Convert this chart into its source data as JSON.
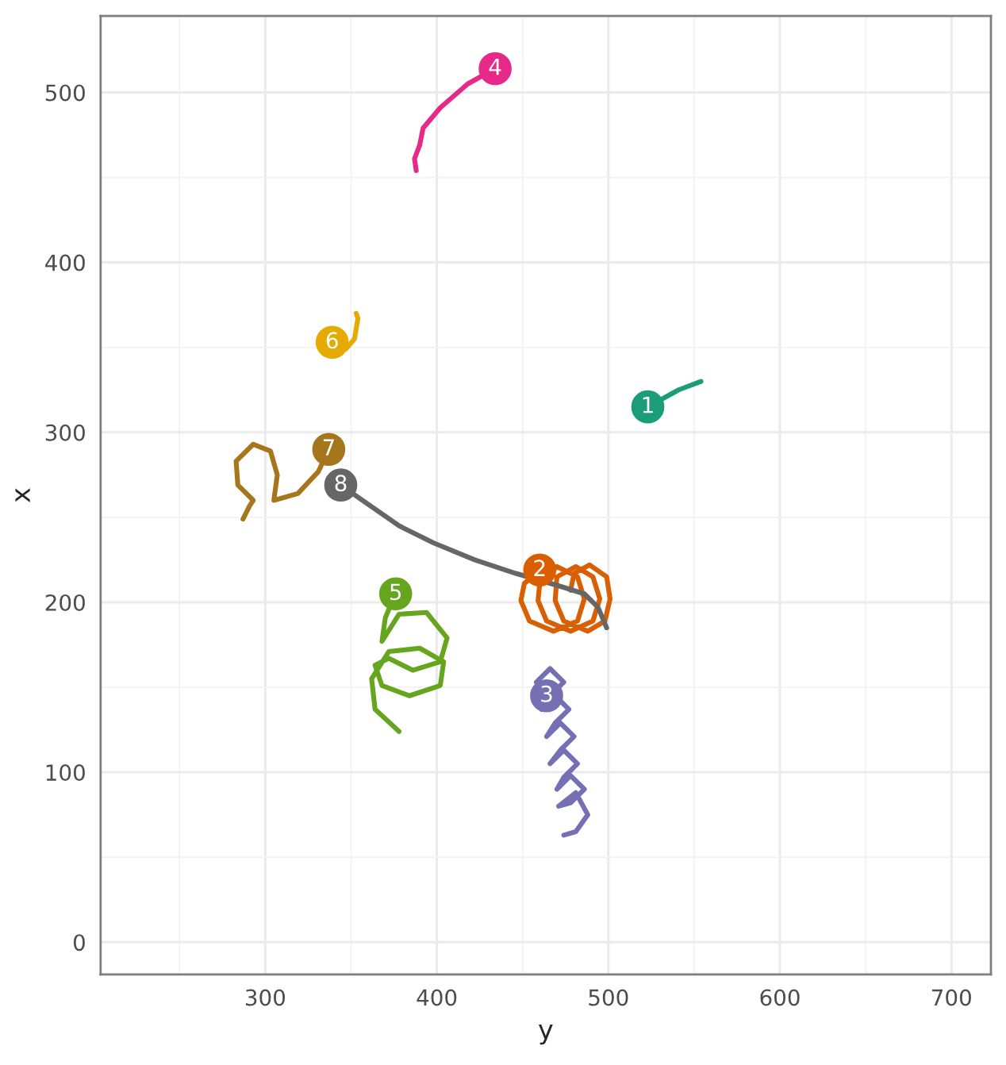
{
  "chart_data": {
    "type": "line",
    "xlabel": "y",
    "ylabel": "x",
    "xlim": [
      204,
      723
    ],
    "ylim": [
      -19,
      545
    ],
    "xticks": [
      {
        "value": 250,
        "label": null
      },
      300,
      {
        "value": 350,
        "label": null
      },
      400,
      {
        "value": 450,
        "label": null
      },
      500,
      {
        "value": 550,
        "label": null
      },
      600,
      {
        "value": 650,
        "label": null
      },
      700
    ],
    "yticks": [
      0,
      {
        "value": 50,
        "label": null
      },
      100,
      {
        "value": 150,
        "label": null
      },
      200,
      {
        "value": 250,
        "label": null
      },
      300,
      {
        "value": 350,
        "label": null
      },
      400,
      {
        "value": 450,
        "label": null
      },
      500
    ],
    "grid": true,
    "legend": false,
    "marker": "none",
    "line_style": "solid",
    "series": [
      {
        "name": "1",
        "color": "#1b9e77",
        "x": [
          523,
          541,
          554
        ],
        "values": [
          315,
          325,
          330
        ]
      },
      {
        "name": "2",
        "color": "#d95f02",
        "x": [
          460,
          451,
          449,
          454,
          468,
          482,
          486,
          482,
          470,
          460,
          459,
          464,
          478,
          491,
          495,
          491,
          481,
          470,
          469,
          474,
          488,
          498,
          501,
          499,
          489,
          480,
          478
        ],
        "values": [
          219,
          211,
          201,
          189,
          183,
          189,
          202,
          215,
          221,
          211,
          201,
          189,
          183,
          189,
          202,
          215,
          221,
          215,
          201,
          189,
          183,
          189,
          202,
          215,
          222,
          217,
          207
        ]
      },
      {
        "name": "3",
        "color": "#7570b3",
        "x": [
          464,
          458,
          466,
          474,
          466,
          461,
          469,
          477,
          469,
          464,
          472,
          480,
          472,
          466,
          474,
          482,
          474,
          470,
          478,
          486,
          478,
          471,
          481,
          488,
          481,
          474
        ],
        "values": [
          145,
          153,
          161,
          153,
          145,
          137,
          145,
          137,
          129,
          121,
          129,
          121,
          113,
          105,
          113,
          105,
          97,
          90,
          98,
          90,
          82,
          80,
          88,
          75,
          65,
          63
        ]
      },
      {
        "name": "4",
        "color": "#e7298a",
        "x": [
          434,
          418,
          402,
          392,
          390,
          387,
          388
        ],
        "values": [
          514,
          505,
          491,
          479,
          469,
          461,
          454
        ]
      },
      {
        "name": "5",
        "color": "#66a61e",
        "x": [
          376,
          370,
          368,
          378,
          394,
          406,
          402,
          386,
          372,
          364,
          368,
          384,
          402,
          404,
          390,
          372,
          362,
          364,
          378
        ],
        "values": [
          205,
          191,
          177,
          193,
          194,
          179,
          165,
          160,
          167,
          163,
          151,
          145,
          151,
          165,
          173,
          171,
          155,
          137,
          124
        ]
      },
      {
        "name": "6",
        "color": "#e6ab02",
        "x": [
          339,
          347,
          352,
          354,
          353
        ],
        "values": [
          353,
          349,
          355,
          367,
          370
        ]
      },
      {
        "name": "7",
        "color": "#a6761d",
        "x": [
          337,
          331,
          319,
          305,
          307,
          303,
          293,
          283,
          284,
          293,
          291,
          287
        ],
        "values": [
          290,
          277,
          264,
          260,
          275,
          289,
          293,
          283,
          269,
          260,
          257,
          249
        ]
      },
      {
        "name": "8",
        "color": "#666666",
        "x": [
          344,
          358,
          378,
          398,
          422,
          446,
          470,
          486,
          494,
          499
        ],
        "values": [
          269,
          259,
          245,
          235,
          225,
          217,
          210,
          205,
          197,
          185
        ]
      }
    ]
  }
}
